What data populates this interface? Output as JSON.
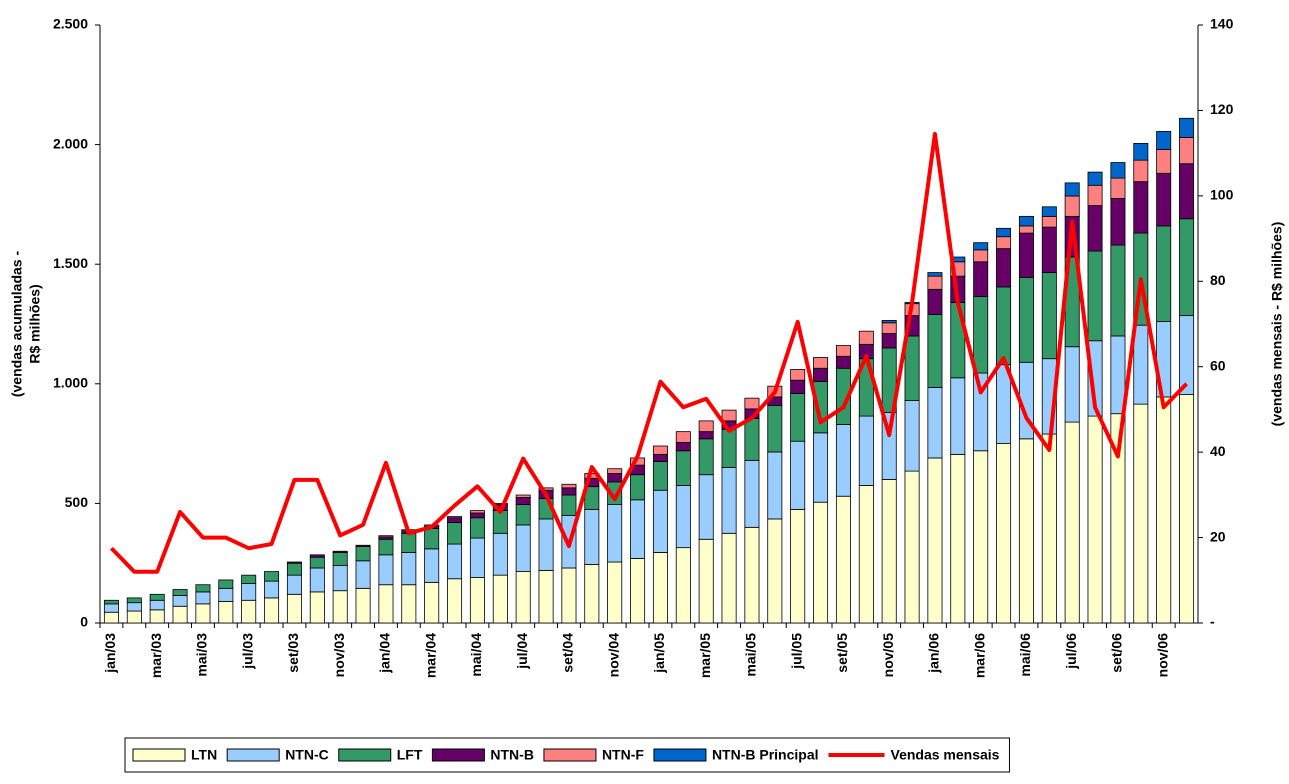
{
  "chart_data": {
    "type": "bar",
    "stacked": true,
    "ylabel": [
      "(vendas acumuladas -",
      "R$ milhões)"
    ],
    "y2label": "(vendas mensais - R$ milhões)",
    "categories": [
      "jan/03",
      null,
      "mar/03",
      null,
      "mai/03",
      null,
      "jul/03",
      null,
      "set/03",
      null,
      "nov/03",
      null,
      "jan/04",
      null,
      "mar/04",
      null,
      "mai/04",
      null,
      "jul/04",
      null,
      "set/04",
      null,
      "nov/04",
      null,
      "jan/05",
      null,
      "mar/05",
      null,
      "mai/05",
      null,
      "jul/05",
      null,
      "set/05",
      null,
      "nov/05",
      null,
      "jan/06",
      null,
      "mar/06",
      null,
      "mai/06",
      null,
      "jul/06",
      null,
      "set/06",
      null,
      "nov/06",
      null
    ],
    "ylim": [
      0,
      2500
    ],
    "yticks": [
      0,
      500,
      {
        "value": 1000,
        "label": "1.000"
      },
      {
        "value": 1500,
        "label": "1.500"
      },
      {
        "value": 2000,
        "label": "2.000"
      },
      {
        "value": 2500,
        "label": "2.500"
      }
    ],
    "y2lim": [
      0,
      140
    ],
    "y2ticks": [
      {
        "value": 0,
        "label": "-"
      },
      20,
      40,
      60,
      80,
      100,
      120,
      140
    ],
    "series": [
      {
        "name": "LTN",
        "color": "#ffffcc",
        "values": [
          45,
          50,
          55,
          70,
          80,
          90,
          95,
          105,
          120,
          130,
          135,
          145,
          160,
          160,
          170,
          185,
          190,
          200,
          215,
          220,
          230,
          245,
          255,
          270,
          295,
          315,
          350,
          375,
          400,
          435,
          475,
          505,
          530,
          575,
          600,
          635,
          690,
          705,
          720,
          750,
          770,
          790,
          840,
          865,
          875,
          915,
          945,
          955
        ]
      },
      {
        "name": "NTN-C",
        "color": "#99ccff",
        "values": [
          35,
          35,
          40,
          45,
          50,
          55,
          70,
          70,
          80,
          100,
          105,
          115,
          125,
          135,
          140,
          145,
          165,
          175,
          195,
          215,
          220,
          230,
          240,
          245,
          260,
          260,
          270,
          275,
          280,
          280,
          285,
          290,
          300,
          290,
          280,
          295,
          295,
          320,
          325,
          330,
          320,
          315,
          315,
          315,
          325,
          330,
          315,
          330
        ]
      },
      {
        "name": "LFT",
        "color": "#339966",
        "values": [
          15,
          20,
          25,
          25,
          30,
          35,
          35,
          40,
          50,
          45,
          55,
          60,
          65,
          80,
          85,
          90,
          85,
          95,
          85,
          85,
          85,
          95,
          95,
          105,
          120,
          145,
          150,
          160,
          175,
          195,
          200,
          215,
          235,
          240,
          270,
          270,
          305,
          315,
          320,
          325,
          355,
          360,
          375,
          375,
          380,
          385,
          400,
          405
        ]
      },
      {
        "name": "NTN-B",
        "color": "#660066",
        "values": [
          0,
          0,
          0,
          0,
          0,
          0,
          0,
          0,
          5,
          10,
          5,
          5,
          10,
          10,
          10,
          20,
          20,
          25,
          30,
          35,
          30,
          35,
          35,
          40,
          30,
          35,
          30,
          35,
          40,
          35,
          55,
          55,
          50,
          60,
          60,
          85,
          105,
          110,
          145,
          160,
          185,
          190,
          170,
          190,
          195,
          215,
          220,
          230
        ]
      },
      {
        "name": "NTN-F",
        "color": "#ff8080",
        "values": [
          0,
          0,
          0,
          0,
          0,
          0,
          0,
          0,
          0,
          0,
          0,
          0,
          5,
          5,
          5,
          5,
          10,
          5,
          10,
          10,
          15,
          20,
          20,
          30,
          35,
          45,
          45,
          45,
          45,
          45,
          45,
          45,
          45,
          55,
          45,
          50,
          55,
          60,
          50,
          50,
          30,
          45,
          85,
          85,
          85,
          90,
          100,
          110
        ]
      },
      {
        "name": "NTN-B Principal",
        "color": "#0066cc",
        "values": [
          0,
          0,
          0,
          0,
          0,
          0,
          0,
          0,
          0,
          0,
          0,
          0,
          0,
          0,
          0,
          0,
          0,
          0,
          0,
          0,
          0,
          0,
          0,
          0,
          0,
          0,
          0,
          0,
          0,
          0,
          0,
          0,
          0,
          0,
          10,
          5,
          15,
          20,
          30,
          35,
          40,
          40,
          55,
          55,
          65,
          70,
          75,
          80
        ]
      },
      {
        "name": "Vendas mensais",
        "type": "line",
        "axis": "y2",
        "color": "#ff0000",
        "values": [
          17.5,
          12,
          12,
          26,
          20,
          20,
          17.5,
          18.5,
          33.5,
          33.5,
          20.5,
          23,
          37.5,
          21,
          22.5,
          27.5,
          32,
          26,
          38.5,
          30,
          18,
          36.5,
          29,
          39,
          56.5,
          50.5,
          52.5,
          45,
          48,
          54,
          70.5,
          47,
          50.5,
          62.5,
          44,
          75,
          114.5,
          75,
          54,
          62,
          48,
          40.5,
          94,
          50.5,
          39,
          80.5,
          50.5,
          56
        ]
      }
    ]
  }
}
